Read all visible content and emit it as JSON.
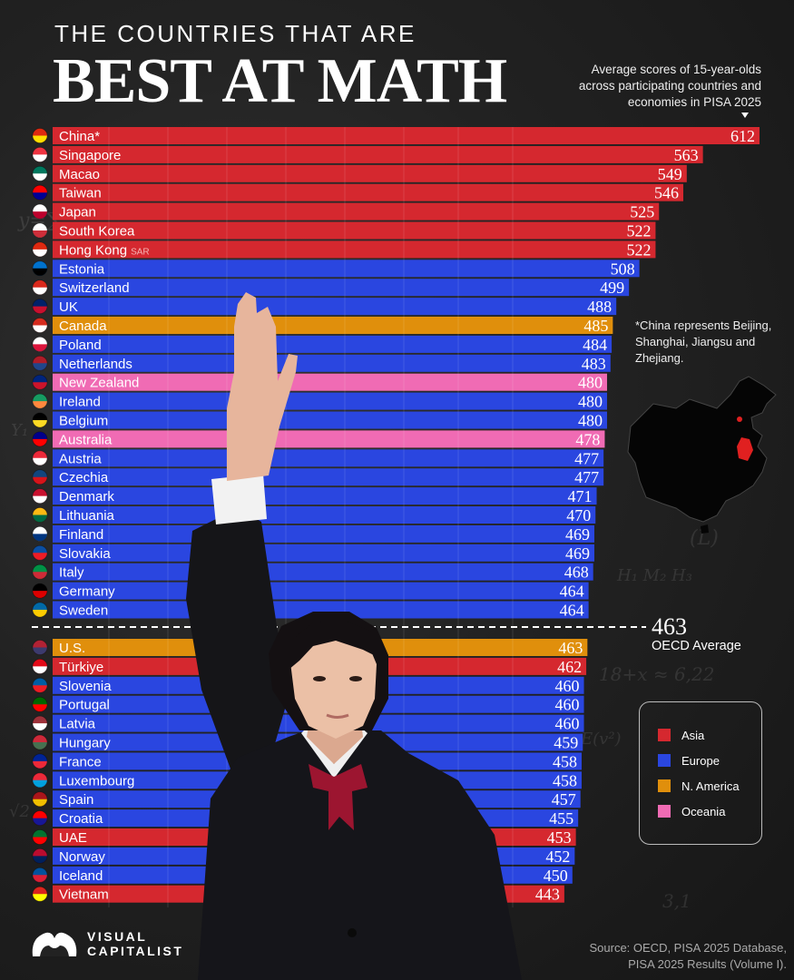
{
  "header": {
    "pre_title": "THE COUNTRIES THAT ARE",
    "title": "BEST AT MATH",
    "subtitle": "Average scores of 15-year-olds across participating countries and economies in PISA 2025"
  },
  "note": "*China represents Beijing, Shanghai, Jiangsu and Zhejiang.",
  "oecd": {
    "value": "463",
    "label": "OECD Average"
  },
  "legend": [
    {
      "label": "Asia",
      "color": "#d5282f"
    },
    {
      "label": "Europe",
      "color": "#2a46e0"
    },
    {
      "label": "N. America",
      "color": "#e08f0c"
    },
    {
      "label": "Oceania",
      "color": "#f06bb4"
    }
  ],
  "footer": {
    "logo_line1": "VISUAL",
    "logo_line2": "CAPITALIST",
    "source": "Source: OECD, PISA 2025 Database, PISA 2025 Results (Volume I)."
  },
  "chart_data": {
    "type": "bar",
    "orientation": "horizontal",
    "oecd_average": 463,
    "categories": [
      "China*",
      "Singapore",
      "Macao",
      "Taiwan",
      "Japan",
      "South Korea",
      "Hong Kong",
      "Estonia",
      "Switzerland",
      "UK",
      "Canada",
      "Poland",
      "Netherlands",
      "New Zealand",
      "Ireland",
      "Belgium",
      "Australia",
      "Austria",
      "Czechia",
      "Denmark",
      "Lithuania",
      "Finland",
      "Slovakia",
      "Italy",
      "Germany",
      "Sweden",
      "U.S.",
      "Türkiye",
      "Slovenia",
      "Portugal",
      "Latvia",
      "Hungary",
      "France",
      "Luxembourg",
      "Spain",
      "Croatia",
      "UAE",
      "Norway",
      "Iceland",
      "Vietnam"
    ],
    "values": [
      612,
      563,
      549,
      546,
      525,
      522,
      522,
      508,
      499,
      488,
      485,
      484,
      483,
      480,
      480,
      480,
      478,
      477,
      477,
      471,
      470,
      469,
      469,
      468,
      464,
      464,
      463,
      462,
      460,
      460,
      460,
      459,
      458,
      458,
      457,
      455,
      453,
      452,
      450,
      443
    ],
    "label_suffixes": {
      "Hong Kong": "SAR"
    },
    "regions": [
      "Asia",
      "Asia",
      "Asia",
      "Asia",
      "Asia",
      "Asia",
      "Asia",
      "Europe",
      "Europe",
      "Europe",
      "N. America",
      "Europe",
      "Europe",
      "Oceania",
      "Europe",
      "Europe",
      "Oceania",
      "Europe",
      "Europe",
      "Europe",
      "Europe",
      "Europe",
      "Europe",
      "Europe",
      "Europe",
      "Europe",
      "N. America",
      "Asia",
      "Europe",
      "Europe",
      "Europe",
      "Europe",
      "Europe",
      "Europe",
      "Europe",
      "Europe",
      "Asia",
      "Europe",
      "Europe",
      "Asia"
    ],
    "flag_colors": [
      [
        "#de2910",
        "#ffde00"
      ],
      [
        "#ef3340",
        "#ffffff"
      ],
      [
        "#00785e",
        "#ffffff"
      ],
      [
        "#fe0000",
        "#000095"
      ],
      [
        "#ffffff",
        "#bc002d"
      ],
      [
        "#ffffff",
        "#cd2e3a"
      ],
      [
        "#de2910",
        "#ffffff"
      ],
      [
        "#0072ce",
        "#000000"
      ],
      [
        "#da291c",
        "#ffffff"
      ],
      [
        "#012169",
        "#c8102e"
      ],
      [
        "#d52b1e",
        "#ffffff"
      ],
      [
        "#ffffff",
        "#dc143c"
      ],
      [
        "#ae1c28",
        "#21468b"
      ],
      [
        "#00247d",
        "#cc142b"
      ],
      [
        "#169b62",
        "#ff883e"
      ],
      [
        "#000000",
        "#fdda24"
      ],
      [
        "#00008b",
        "#ff0000"
      ],
      [
        "#ed2939",
        "#ffffff"
      ],
      [
        "#11457e",
        "#d7141a"
      ],
      [
        "#c8102e",
        "#ffffff"
      ],
      [
        "#fdb913",
        "#006a44"
      ],
      [
        "#ffffff",
        "#003580"
      ],
      [
        "#0b4ea2",
        "#ee1c25"
      ],
      [
        "#009246",
        "#ce2b37"
      ],
      [
        "#000000",
        "#dd0000"
      ],
      [
        "#006aa7",
        "#fecc00"
      ],
      [
        "#b22234",
        "#3c3b6e"
      ],
      [
        "#e30a17",
        "#ffffff"
      ],
      [
        "#005da4",
        "#ed1c24"
      ],
      [
        "#006600",
        "#ff0000"
      ],
      [
        "#9e3039",
        "#ffffff"
      ],
      [
        "#ce2939",
        "#477050"
      ],
      [
        "#002395",
        "#ed2939"
      ],
      [
        "#ed2939",
        "#00a1de"
      ],
      [
        "#aa151b",
        "#f1bf00"
      ],
      [
        "#ff0000",
        "#171796"
      ],
      [
        "#00732f",
        "#ff0000"
      ],
      [
        "#ba0c2f",
        "#00205b"
      ],
      [
        "#02529c",
        "#dc1e35"
      ],
      [
        "#da251d",
        "#ffff00"
      ]
    ],
    "xlim": [
      0,
      612
    ],
    "grid": true
  }
}
